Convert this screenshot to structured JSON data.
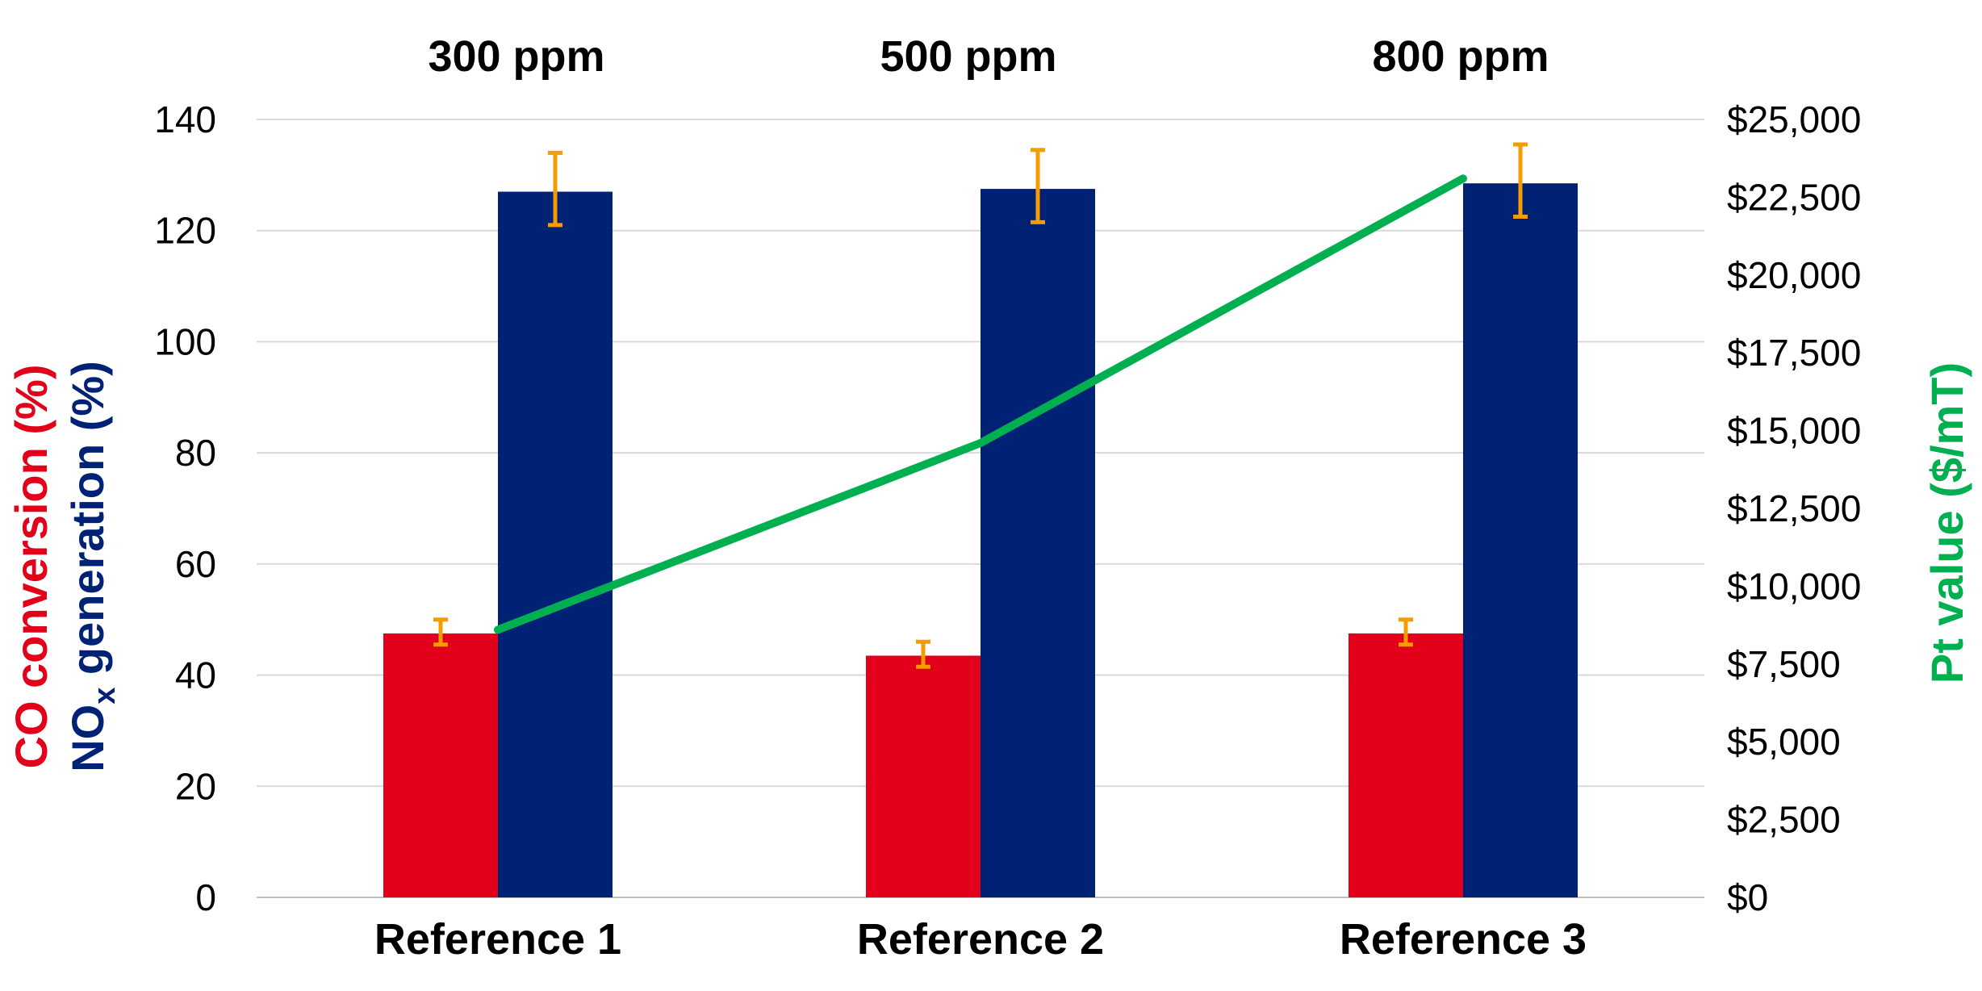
{
  "chart_data": {
    "type": "bar",
    "categories": [
      "Reference 1",
      "Reference 2",
      "Reference 3"
    ],
    "annotations": [
      "300 ppm",
      "500 ppm",
      "800 ppm"
    ],
    "series": [
      {
        "name": "CO conversion (%)",
        "color": "#e2001a",
        "values": [
          47.5,
          43.5,
          47.5
        ],
        "error_low": [
          45.5,
          41.5,
          45.5
        ],
        "error_high": [
          50,
          46,
          50
        ]
      },
      {
        "name": "NOx generation (%)",
        "color": "#002275",
        "values": [
          127,
          127.5,
          128.5
        ],
        "error_low": [
          121,
          121.5,
          122.5
        ],
        "error_high": [
          134,
          134.5,
          135.5
        ]
      }
    ],
    "line_series": {
      "name": "Pt value ($/mT)",
      "color": "#00b050",
      "axis": "right",
      "values": [
        8600,
        14600,
        23100
      ]
    },
    "error_bar_color": "#f59c00",
    "left_axis": {
      "ylim": [
        0,
        140
      ],
      "ticks": [
        0,
        20,
        40,
        60,
        80,
        100,
        120,
        140
      ],
      "label_parts": {
        "co": "CO conversion (%)",
        "nox_base": "NO",
        "nox_sub": "x",
        "nox_rest": " generation (%)"
      },
      "co_color": "#e2001a",
      "nox_color": "#002275"
    },
    "right_axis": {
      "ylim": [
        0,
        25000
      ],
      "ticks": [
        "$0",
        "$2,500",
        "$5,000",
        "$7,500",
        "$10,000",
        "$12,500",
        "$15,000",
        "$17,500",
        "$20,000",
        "$22,500",
        "$25,000"
      ],
      "label": "Pt value ($/mT)",
      "color": "#00b050"
    },
    "grid": true
  }
}
